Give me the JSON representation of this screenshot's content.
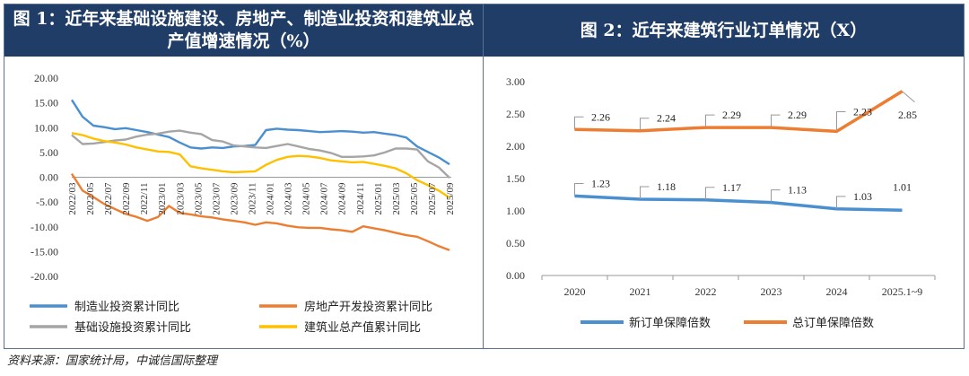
{
  "left": {
    "title": "图 1：近年来基础设施建设、房地产、制造业投资和建筑业总产值增速情况（%）",
    "chart_data": {
      "type": "line",
      "ylim": [
        -20,
        20
      ],
      "yticks": [
        "20.00",
        "15.00",
        "10.00",
        "5.00",
        "0.00",
        "-5.00",
        "-10.00",
        "-15.00",
        "-20.00"
      ],
      "x_tick_labels": [
        "2022/03",
        "2022/05",
        "2022/07",
        "2022/09",
        "2022/11",
        "2023/01",
        "2023/03",
        "2023/05",
        "2023/07",
        "2023/09",
        "2023/11",
        "2024/01",
        "2024/03",
        "2024/05",
        "2024/07",
        "2024/09",
        "2024/11",
        "2025/01",
        "2025/03",
        "2025/05",
        "2025/07",
        "2025/09"
      ],
      "series": [
        {
          "name": "制造业投资累计同比",
          "color": "#4a8fd0",
          "values": [
            15.6,
            12.2,
            10.4,
            10.1,
            9.7,
            9.9,
            9.5,
            9.1,
            8.6,
            8.1,
            7.0,
            6.0,
            5.8,
            6.0,
            5.9,
            6.2,
            6.3,
            6.5,
            9.5,
            9.8,
            9.6,
            9.5,
            9.3,
            9.1,
            9.2,
            9.3,
            9.2,
            9.0,
            9.1,
            8.8,
            8.5,
            8.0,
            6.2,
            5.1,
            4.0,
            2.6
          ]
        },
        {
          "name": "房地产开发投资累计同比",
          "color": "#ed7d31",
          "values": [
            0.7,
            -2.7,
            -4.0,
            -5.4,
            -6.4,
            -7.4,
            -8.0,
            -8.8,
            -8.0,
            -5.8,
            -7.2,
            -7.5,
            -7.9,
            -8.1,
            -8.5,
            -8.8,
            -9.1,
            -9.6,
            -9.1,
            -9.3,
            -9.8,
            -10.1,
            -10.2,
            -10.2,
            -10.5,
            -10.7,
            -11.0,
            -9.9,
            -10.3,
            -10.7,
            -11.2,
            -11.7,
            -12.0,
            -12.9,
            -13.9,
            -14.7
          ]
        },
        {
          "name": "基础设施投资累计同比",
          "color": "#a5a5a5",
          "values": [
            8.5,
            6.7,
            6.8,
            7.1,
            7.4,
            7.6,
            8.2,
            8.6,
            8.8,
            9.2,
            9.4,
            9.0,
            8.7,
            7.5,
            7.2,
            6.4,
            6.2,
            6.0,
            5.9,
            6.3,
            6.7,
            6.2,
            5.7,
            5.4,
            4.9,
            4.1,
            4.1,
            4.2,
            4.4,
            5.0,
            5.8,
            5.8,
            5.6,
            3.2,
            2.0,
            -0.1
          ]
        },
        {
          "name": "建筑业总产值累计同比",
          "color": "#ffc000",
          "values": [
            8.9,
            8.5,
            7.8,
            7.3,
            7.0,
            6.6,
            6.0,
            5.6,
            5.2,
            5.1,
            4.6,
            2.2,
            1.8,
            1.5,
            1.2,
            1.0,
            1.1,
            1.2,
            2.5,
            3.5,
            4.1,
            4.3,
            4.2,
            3.9,
            3.4,
            3.2,
            3.0,
            3.1,
            2.7,
            2.3,
            1.8,
            0.8,
            -0.6,
            -1.6,
            -2.7,
            -4.1
          ]
        }
      ]
    }
  },
  "right": {
    "title": "图 2：近年来建筑行业订单情况（X）",
    "chart_data": {
      "type": "line",
      "categories": [
        "2020",
        "2021",
        "2022",
        "2023",
        "2024",
        "2025.1~9"
      ],
      "ylim": [
        0,
        3
      ],
      "yticks": [
        "3.00",
        "2.50",
        "2.00",
        "1.50",
        "1.00",
        "0.50",
        "0.00"
      ],
      "series": [
        {
          "name": "新订单保障倍数",
          "color": "#4a8fd0",
          "values": [
            1.23,
            1.18,
            1.17,
            1.13,
            1.03,
            1.01
          ],
          "labels": [
            "1.23",
            "1.18",
            "1.17",
            "1.13",
            "1.03",
            "1.01"
          ]
        },
        {
          "name": "总订单保障倍数",
          "color": "#ed7d31",
          "values": [
            2.26,
            2.24,
            2.29,
            2.29,
            2.23,
            2.85
          ],
          "labels": [
            "2.26",
            "2.24",
            "2.29",
            "2.29",
            "2.23",
            "2.85"
          ]
        }
      ]
    }
  },
  "source": "资料来源：国家统计局，中诚信国际整理"
}
